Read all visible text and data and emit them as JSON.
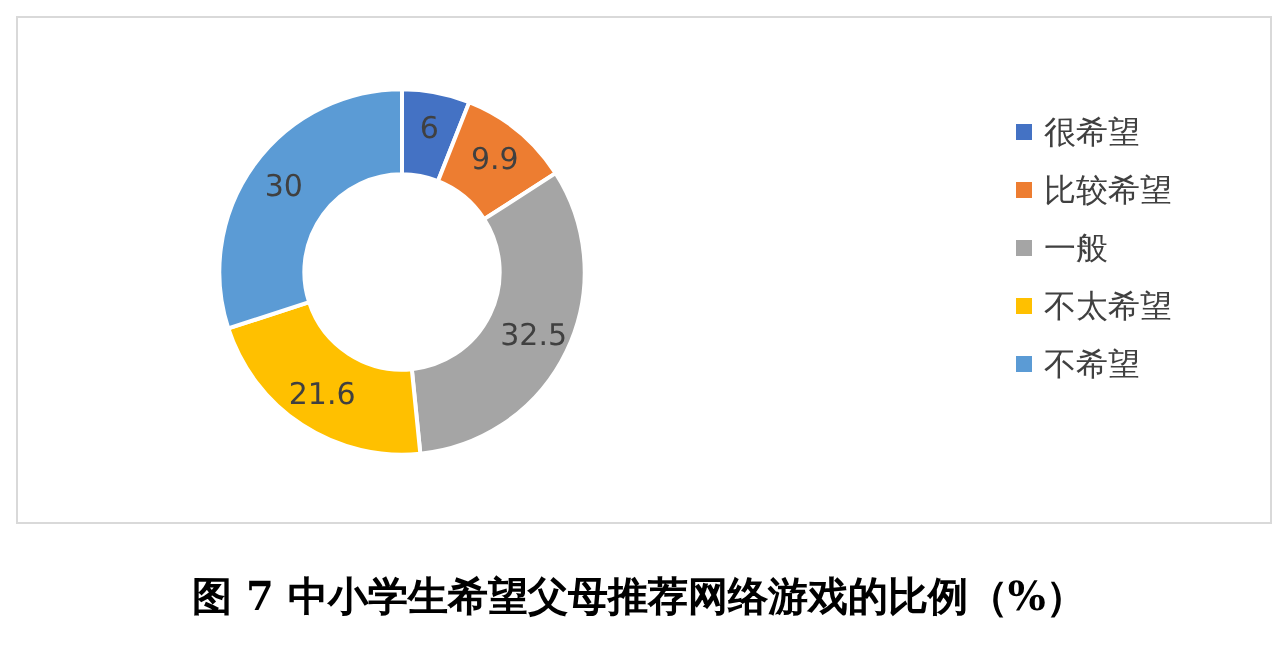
{
  "chart_data": {
    "type": "donut",
    "title": "图 7 中小学生希望父母推荐网络游戏的比例（%）",
    "categories": [
      "很希望",
      "比较希望",
      "一般",
      "不太希望",
      "不希望"
    ],
    "values": [
      6,
      9.9,
      32.5,
      21.6,
      30
    ],
    "colors": [
      "#4472c4",
      "#ed7d31",
      "#a5a5a5",
      "#ffc000",
      "#5b9bd5"
    ],
    "data_labels": true,
    "legend": "right"
  }
}
